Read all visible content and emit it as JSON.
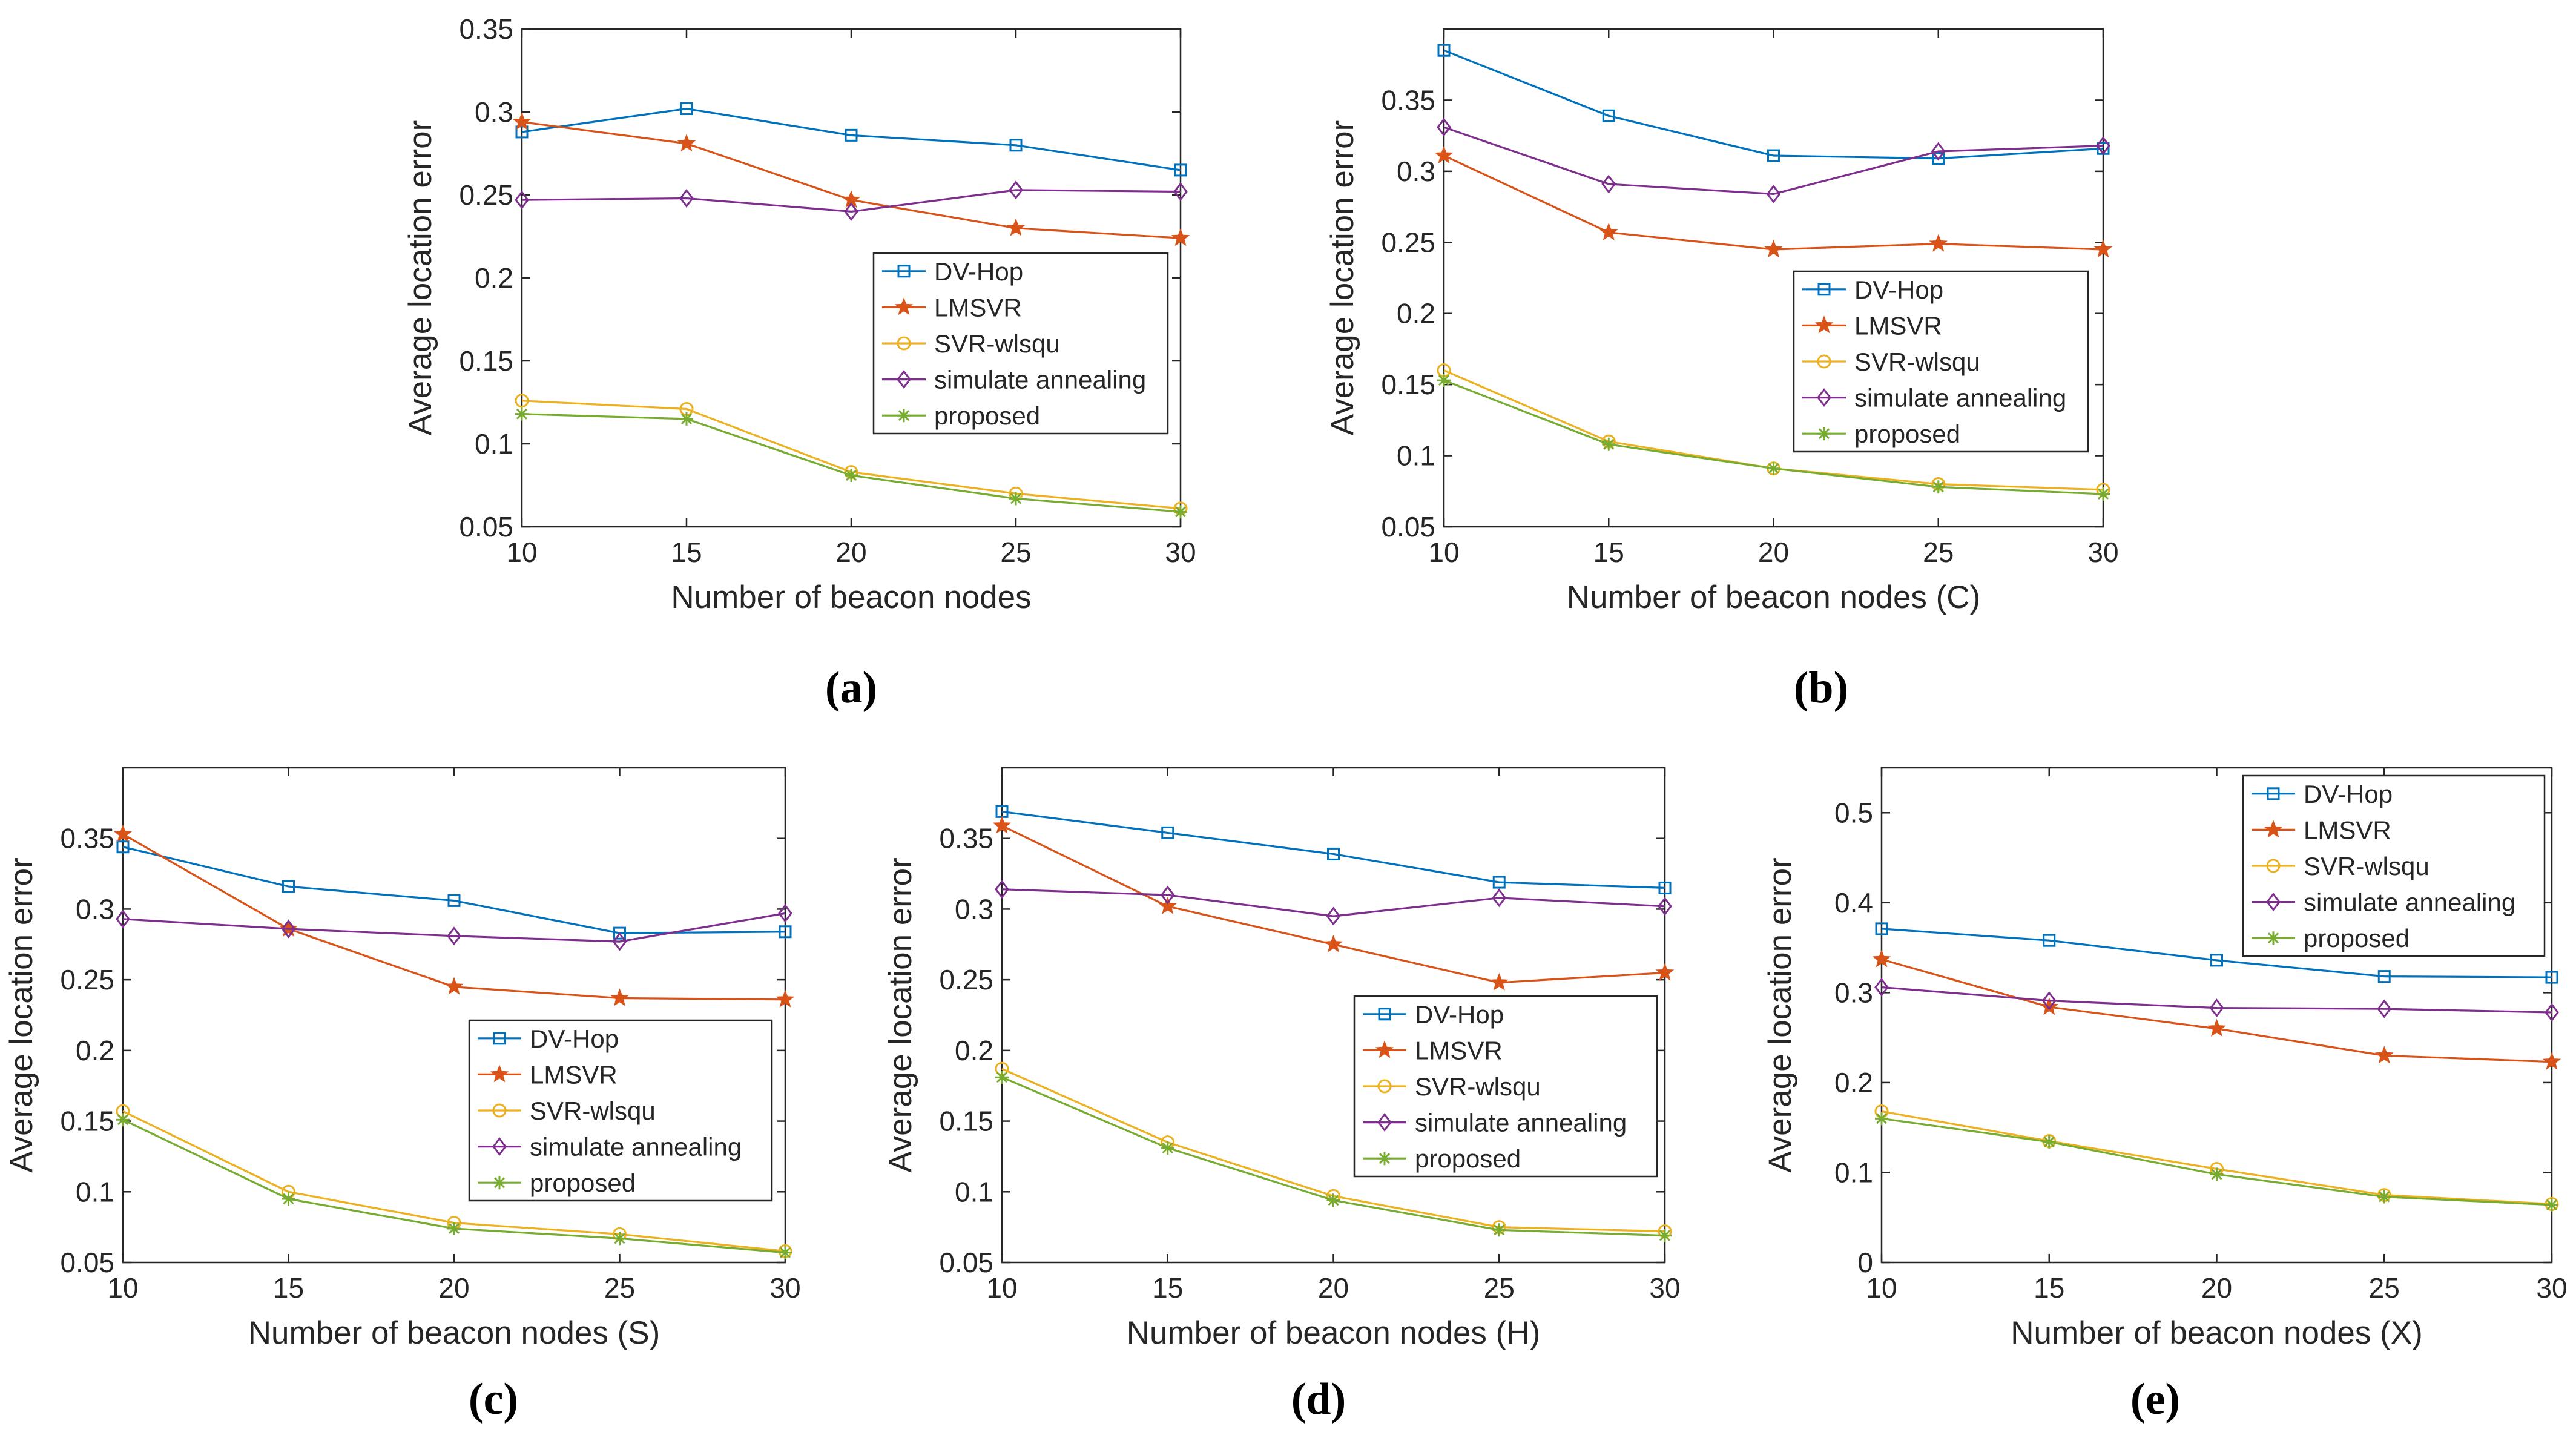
{
  "chart_data": [
    {
      "type": "line",
      "caption": "(a)",
      "xlabel": "Number of beacon nodes",
      "ylabel": "Average location error",
      "x": [
        10,
        15,
        20,
        25,
        30
      ],
      "xlim": [
        10,
        30
      ],
      "xticks": [
        "10",
        "15",
        "20",
        "25",
        "30"
      ],
      "ylim": [
        0.05,
        0.35
      ],
      "yticks": [
        0.05,
        0.1,
        0.15,
        0.2,
        0.25,
        0.3,
        0.35
      ],
      "ytick_labels": [
        "0.05",
        "0.1",
        "0.15",
        "0.2",
        "0.25",
        "0.3",
        "0.35"
      ],
      "legend_position": "center-right",
      "series": [
        {
          "name": "DV-Hop",
          "values": [
            0.288,
            0.302,
            0.286,
            0.28,
            0.265
          ]
        },
        {
          "name": "LMSVR",
          "values": [
            0.294,
            0.281,
            0.247,
            0.23,
            0.224
          ]
        },
        {
          "name": "SVR-wlsqu",
          "values": [
            0.126,
            0.121,
            0.083,
            0.07,
            0.061
          ]
        },
        {
          "name": "simulate annealing",
          "values": [
            0.247,
            0.248,
            0.24,
            0.253,
            0.252
          ]
        },
        {
          "name": "proposed",
          "values": [
            0.118,
            0.115,
            0.081,
            0.067,
            0.059
          ]
        }
      ]
    },
    {
      "type": "line",
      "caption": "(b)",
      "xlabel": "Number of beacon nodes (C)",
      "ylabel": "Average location error",
      "x": [
        10,
        15,
        20,
        25,
        30
      ],
      "xlim": [
        10,
        30
      ],
      "xticks": [
        "10",
        "15",
        "20",
        "25",
        "30"
      ],
      "ylim": [
        0.05,
        0.4
      ],
      "yticks": [
        0.05,
        0.1,
        0.15,
        0.2,
        0.25,
        0.3,
        0.35
      ],
      "ytick_labels": [
        "0.05",
        "0.1",
        "0.15",
        "0.2",
        "0.25",
        "0.3",
        "0.35"
      ],
      "legend_position": "center-right",
      "series": [
        {
          "name": "DV-Hop",
          "values": [
            0.385,
            0.339,
            0.311,
            0.309,
            0.316
          ]
        },
        {
          "name": "LMSVR",
          "values": [
            0.311,
            0.257,
            0.245,
            0.249,
            0.245
          ]
        },
        {
          "name": "SVR-wlsqu",
          "values": [
            0.16,
            0.11,
            0.091,
            0.08,
            0.076
          ]
        },
        {
          "name": "simulate annealing",
          "values": [
            0.331,
            0.291,
            0.284,
            0.314,
            0.318
          ]
        },
        {
          "name": "proposed",
          "values": [
            0.153,
            0.108,
            0.091,
            0.078,
            0.073
          ]
        }
      ]
    },
    {
      "type": "line",
      "caption": "(c)",
      "xlabel": "Number of beacon nodes (S)",
      "ylabel": "Average location error",
      "x": [
        10,
        15,
        20,
        25,
        30
      ],
      "xlim": [
        10,
        30
      ],
      "xticks": [
        "10",
        "15",
        "20",
        "25",
        "30"
      ],
      "ylim": [
        0.05,
        0.4
      ],
      "yticks": [
        0.05,
        0.1,
        0.15,
        0.2,
        0.25,
        0.3,
        0.35
      ],
      "ytick_labels": [
        "0.05",
        "0.1",
        "0.15",
        "0.2",
        "0.25",
        "0.3",
        "0.35"
      ],
      "legend_position": "center-right",
      "series": [
        {
          "name": "DV-Hop",
          "values": [
            0.344,
            0.316,
            0.306,
            0.283,
            0.284
          ]
        },
        {
          "name": "LMSVR",
          "values": [
            0.353,
            0.286,
            0.245,
            0.237,
            0.236
          ]
        },
        {
          "name": "SVR-wlsqu",
          "values": [
            0.157,
            0.1,
            0.078,
            0.07,
            0.058
          ]
        },
        {
          "name": "simulate annealing",
          "values": [
            0.293,
            0.286,
            0.281,
            0.277,
            0.297
          ]
        },
        {
          "name": "proposed",
          "values": [
            0.151,
            0.095,
            0.074,
            0.067,
            0.057
          ]
        }
      ]
    },
    {
      "type": "line",
      "caption": "(d)",
      "xlabel": "Number of beacon nodes (H)",
      "ylabel": "Average location error",
      "x": [
        10,
        15,
        20,
        25,
        30
      ],
      "xlim": [
        10,
        30
      ],
      "xticks": [
        "10",
        "15",
        "20",
        "25",
        "30"
      ],
      "ylim": [
        0.05,
        0.4
      ],
      "yticks": [
        0.05,
        0.1,
        0.15,
        0.2,
        0.25,
        0.3,
        0.35
      ],
      "ytick_labels": [
        "0.05",
        "0.1",
        "0.15",
        "0.2",
        "0.25",
        "0.3",
        "0.35"
      ],
      "legend_position": "center-left",
      "series": [
        {
          "name": "DV-Hop",
          "values": [
            0.369,
            0.354,
            0.339,
            0.319,
            0.315
          ]
        },
        {
          "name": "LMSVR",
          "values": [
            0.359,
            0.302,
            0.275,
            0.248,
            0.255
          ]
        },
        {
          "name": "SVR-wlsqu",
          "values": [
            0.187,
            0.135,
            0.097,
            0.075,
            0.072
          ]
        },
        {
          "name": "simulate annealing",
          "values": [
            0.314,
            0.31,
            0.295,
            0.308,
            0.302
          ]
        },
        {
          "name": "proposed",
          "values": [
            0.181,
            0.131,
            0.094,
            0.073,
            0.069
          ]
        }
      ]
    },
    {
      "type": "line",
      "caption": "(e)",
      "xlabel": "Number of beacon nodes (X)",
      "ylabel": "Average location error",
      "x": [
        10,
        15,
        20,
        25,
        30
      ],
      "xlim": [
        10,
        30
      ],
      "xticks": [
        "10",
        "15",
        "20",
        "25",
        "30"
      ],
      "ylim": [
        0,
        0.55
      ],
      "yticks": [
        0,
        0.1,
        0.2,
        0.3,
        0.4,
        0.5
      ],
      "ytick_labels": [
        "0",
        "0.1",
        "0.2",
        "0.3",
        "0.4",
        "0.5"
      ],
      "legend_position": "top-right",
      "series": [
        {
          "name": "DV-Hop",
          "values": [
            0.371,
            0.358,
            0.336,
            0.318,
            0.317
          ]
        },
        {
          "name": "LMSVR",
          "values": [
            0.337,
            0.284,
            0.26,
            0.23,
            0.223
          ]
        },
        {
          "name": "SVR-wlsqu",
          "values": [
            0.168,
            0.135,
            0.104,
            0.075,
            0.065
          ]
        },
        {
          "name": "simulate annealing",
          "values": [
            0.306,
            0.291,
            0.283,
            0.282,
            0.278
          ]
        },
        {
          "name": "proposed",
          "values": [
            0.16,
            0.134,
            0.098,
            0.073,
            0.064
          ]
        }
      ]
    }
  ],
  "series_colors": [
    "#0072BD",
    "#D95319",
    "#EDB120",
    "#7E2F8E",
    "#77AC30"
  ],
  "series_markers": [
    "square",
    "star",
    "circle",
    "diamond",
    "asterisk"
  ]
}
